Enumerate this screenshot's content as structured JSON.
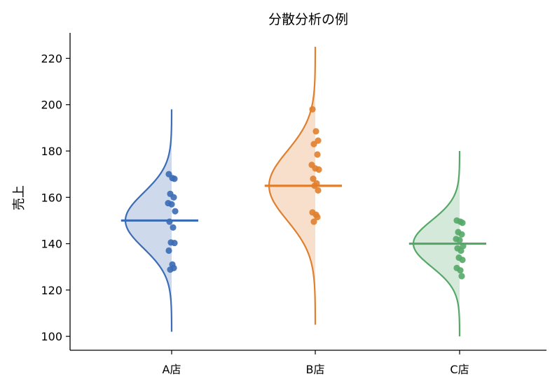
{
  "chart_data": {
    "type": "violin",
    "title": "分散分析の例",
    "xlabel": "",
    "ylabel": "売上",
    "categories": [
      "A店",
      "B店",
      "C店"
    ],
    "ylim": [
      94,
      231
    ],
    "yticks": [
      100,
      120,
      140,
      160,
      180,
      200,
      220
    ],
    "grid": false,
    "series": [
      {
        "color": "#3b6cb5",
        "mean": 150,
        "sd": 12,
        "kde_range": [
          102,
          198
        ],
        "points": [
          170,
          168.3,
          168,
          161.5,
          160,
          157.5,
          157,
          154,
          149.5,
          147,
          140.5,
          140.3,
          137,
          131,
          129.5,
          128.8
        ]
      },
      {
        "color": "#e07f2e",
        "mean": 165,
        "sd": 15,
        "kde_range": [
          105,
          225
        ],
        "points": [
          198,
          188.5,
          184.5,
          183,
          178.5,
          174,
          172.5,
          172,
          168,
          166,
          165,
          163,
          153.5,
          152.5,
          151.5,
          149.5
        ]
      },
      {
        "color": "#55a868",
        "mean": 140,
        "sd": 10,
        "kde_range": [
          100,
          180
        ],
        "points": [
          150,
          149.5,
          149,
          145,
          144,
          142,
          141.5,
          139,
          138,
          137,
          134,
          133,
          129.5,
          128.5,
          126
        ]
      }
    ]
  }
}
